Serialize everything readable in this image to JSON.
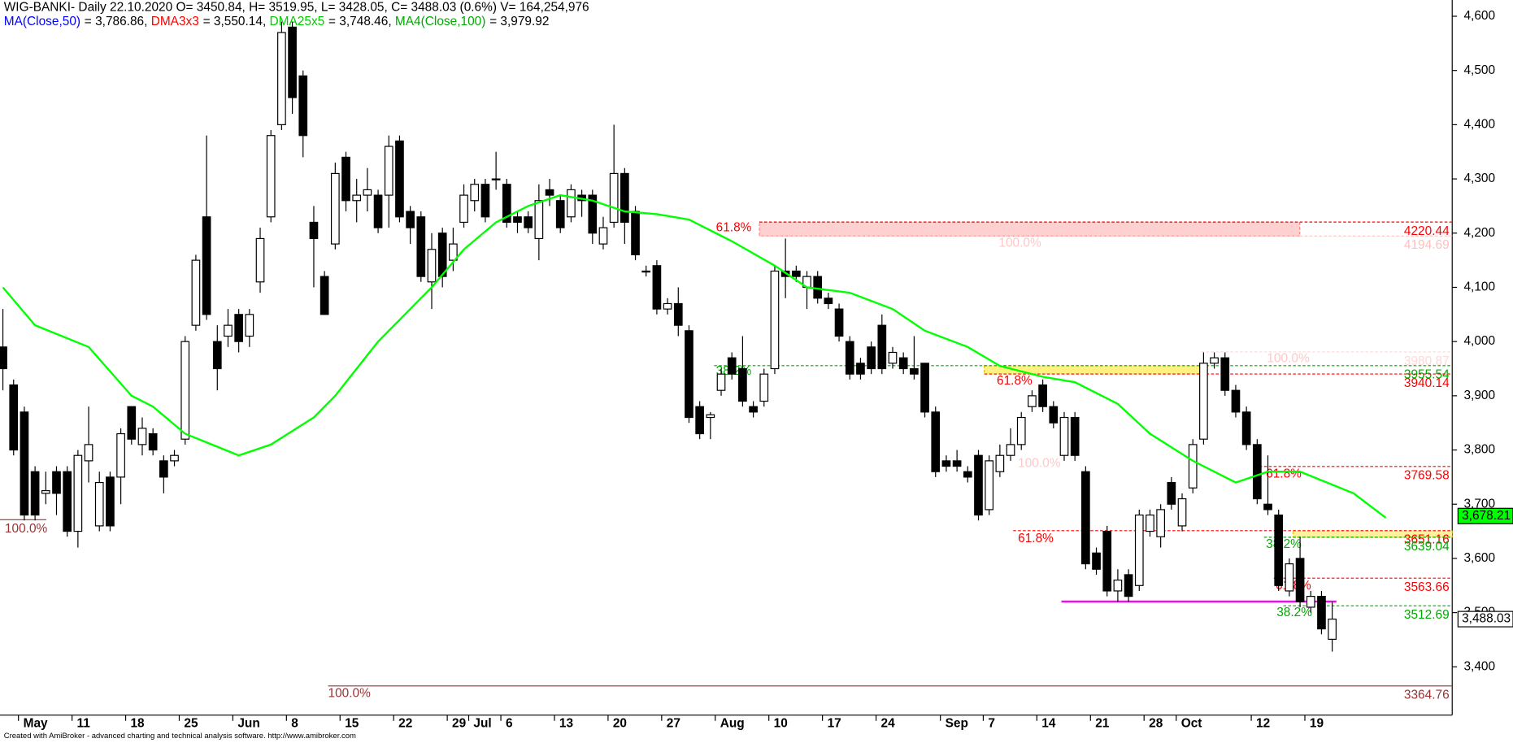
{
  "chart_data": {
    "type": "candlestick",
    "title": "WIG-BANKI- Daily 22.10.2020 O= 3450.84, H= 3519.95, L= 3428.05, C= 3488.03 (0.6%) V= 164,254,976",
    "indicators": [
      {
        "name": "MA(Close,50)",
        "color": "#0000ff",
        "value_label": "= 3,786.86,"
      },
      {
        "name": "DMA3x3",
        "color": "#ff0000",
        "value_label": "= 3,550.14,"
      },
      {
        "name": "DMA25x5",
        "color": "#00cc00",
        "value_label": "= 3,748.46,"
      },
      {
        "name": "MA4(Close,100)",
        "color": "#00aa00",
        "value_label": "= 3,979.92"
      }
    ],
    "categories": [
      null,
      "May",
      null,
      null,
      null,
      null,
      "11",
      null,
      null,
      null,
      null,
      "18",
      null,
      null,
      null,
      null,
      "25",
      null,
      null,
      null,
      null,
      "Jun",
      null,
      null,
      null,
      null,
      "8",
      null,
      null,
      null,
      null,
      "15",
      null,
      null,
      null,
      null,
      "22",
      null,
      null,
      null,
      null,
      "29",
      null,
      "Jul",
      null,
      null,
      "6",
      null,
      null,
      null,
      null,
      "13",
      null,
      null,
      null,
      null,
      "20",
      null,
      null,
      null,
      null,
      "27",
      null,
      null,
      null,
      null,
      "Aug",
      null,
      null,
      null,
      null,
      "10",
      null,
      null,
      null,
      null,
      "17",
      null,
      null,
      null,
      null,
      "24",
      null,
      null,
      null,
      null,
      null,
      "Sep",
      null,
      null,
      null,
      "7",
      null,
      null,
      null,
      null,
      "14",
      null,
      null,
      null,
      null,
      "21",
      null,
      null,
      null,
      null,
      "28",
      null,
      null,
      "Oct",
      null,
      null,
      null,
      null,
      null,
      null,
      "12",
      null,
      null,
      null,
      null,
      "19",
      null,
      null,
      null
    ],
    "open": [
      3990,
      3920,
      3870,
      3760,
      3720,
      3760,
      3760,
      3650,
      3780,
      3660,
      3750,
      3750,
      3880,
      3810,
      3830,
      3780,
      3780,
      3820,
      4030,
      4230,
      4000,
      4010,
      4050,
      4010,
      4110,
      4230,
      4400,
      4580,
      4490,
      4220,
      4120,
      4180,
      4340,
      4260,
      4270,
      4270,
      4270,
      4370,
      4240,
      4230,
      4110,
      4200,
      4150,
      4220,
      4260,
      4290,
      4300,
      4290,
      4230,
      4230,
      4190,
      4280,
      4260,
      4230,
      4270,
      4270,
      4180,
      4220,
      4310,
      4240,
      4130,
      4140,
      4060,
      4070,
      4020,
      3880,
      3860,
      3910,
      3970,
      3950,
      3880,
      3890,
      3950,
      4130,
      4130,
      4100,
      4120,
      4080,
      4060,
      4000,
      3960,
      3990,
      4030,
      3960,
      3970,
      3950,
      3960,
      3870,
      3780,
      3780,
      3760,
      3790,
      3690,
      3760,
      3790,
      3810,
      3880,
      3920,
      3880,
      3790,
      3860,
      3760,
      3610,
      3650,
      3540,
      3570,
      3550,
      3650,
      3640,
      3740,
      3660,
      3730,
      3820,
      3960,
      3970,
      3910,
      3870,
      3810,
      3700,
      3680,
      3540,
      3600,
      3510,
      3530,
      3450.84
    ],
    "high": [
      4060,
      3930,
      3880,
      3770,
      3760,
      3770,
      3770,
      3800,
      3880,
      3760,
      3760,
      3840,
      3880,
      3860,
      3840,
      3790,
      3800,
      4010,
      4160,
      4380,
      4030,
      4060,
      4060,
      4060,
      4210,
      4390,
      4590,
      4590,
      4500,
      4250,
      4130,
      4330,
      4350,
      4300,
      4320,
      4280,
      4380,
      4380,
      4250,
      4240,
      4200,
      4210,
      4210,
      4290,
      4300,
      4300,
      4350,
      4300,
      4240,
      4240,
      4290,
      4300,
      4270,
      4290,
      4280,
      4280,
      4230,
      4400,
      4320,
      4250,
      4140,
      4150,
      4080,
      4100,
      4030,
      3890,
      3870,
      3950,
      3980,
      4010,
      3890,
      3950,
      4140,
      4190,
      4140,
      4130,
      4130,
      4090,
      4070,
      4010,
      3970,
      4000,
      4050,
      3990,
      3980,
      4010,
      3960,
      3880,
      3790,
      3800,
      3770,
      3800,
      3790,
      3810,
      3840,
      3870,
      3910,
      3930,
      3890,
      3870,
      3870,
      3770,
      3620,
      3660,
      3580,
      3580,
      3690,
      3690,
      3700,
      3750,
      3720,
      3820,
      3980,
      3980,
      3980,
      3920,
      3880,
      3820,
      3790,
      3690,
      3600,
      3640,
      3540,
      3540,
      3519.95
    ],
    "low": [
      3910,
      3790,
      3670,
      3670,
      3700,
      3680,
      3640,
      3620,
      3740,
      3650,
      3650,
      3700,
      3810,
      3790,
      3790,
      3720,
      3770,
      3810,
      4020,
      4040,
      3910,
      3990,
      3980,
      3990,
      4090,
      4220,
      4390,
      4420,
      4340,
      4100,
      4060,
      4170,
      4240,
      4220,
      4240,
      4200,
      4210,
      4220,
      4180,
      4110,
      4060,
      4100,
      4130,
      4210,
      4240,
      4220,
      4280,
      4210,
      4200,
      4200,
      4150,
      4250,
      4200,
      4220,
      4230,
      4180,
      4170,
      4210,
      4180,
      4150,
      4120,
      4050,
      4050,
      4010,
      3850,
      3820,
      3820,
      3900,
      3930,
      3880,
      3860,
      3880,
      3940,
      4080,
      4110,
      4060,
      4070,
      4060,
      4000,
      3930,
      3930,
      3940,
      3940,
      3950,
      3940,
      3930,
      3860,
      3750,
      3760,
      3760,
      3740,
      3670,
      3680,
      3750,
      3780,
      3800,
      3870,
      3870,
      3840,
      3780,
      3780,
      3580,
      3570,
      3530,
      3520,
      3520,
      3540,
      3640,
      3620,
      3690,
      3650,
      3720,
      3810,
      3950,
      3900,
      3860,
      3800,
      3700,
      3680,
      3540,
      3530,
      3510,
      3500,
      3460,
      3428.05
    ],
    "close": [
      3950,
      3800,
      3680,
      3680,
      3725,
      3720,
      3650,
      3790,
      3810,
      3740,
      3660,
      3830,
      3820,
      3840,
      3800,
      3750,
      3790,
      4000,
      4150,
      4050,
      3950,
      4030,
      4000,
      4050,
      4190,
      4380,
      4570,
      4450,
      4380,
      4190,
      4050,
      4310,
      4260,
      4270,
      4280,
      4210,
      4360,
      4230,
      4210,
      4120,
      4170,
      4120,
      4180,
      4270,
      4290,
      4230,
      4300,
      4220,
      4220,
      4210,
      4260,
      4270,
      4210,
      4280,
      4260,
      4200,
      4210,
      4310,
      4220,
      4160,
      4130,
      4060,
      4070,
      4030,
      3860,
      3830,
      3865,
      3940,
      3940,
      3890,
      3870,
      3940,
      4130,
      4120,
      4120,
      4120,
      4080,
      4070,
      4010,
      3940,
      3940,
      3950,
      3950,
      3980,
      3950,
      3940,
      3870,
      3760,
      3770,
      3770,
      3750,
      3680,
      3780,
      3790,
      3810,
      3860,
      3900,
      3880,
      3850,
      3860,
      3790,
      3590,
      3580,
      3540,
      3560,
      3530,
      3680,
      3680,
      3690,
      3700,
      3710,
      3810,
      3960,
      3970,
      3910,
      3870,
      3810,
      3710,
      3690,
      3550,
      3590,
      3520,
      3530,
      3470,
      3488.03
    ],
    "series": [
      {
        "name": "DMA25x5",
        "color": "#00ff00",
        "x": [
          0,
          3,
          8,
          12,
          14,
          17,
          22,
          25,
          29,
          31,
          33,
          35,
          38,
          40,
          43,
          46,
          49,
          52,
          55,
          58,
          61,
          64,
          68,
          72,
          75,
          79,
          83,
          86,
          90,
          93,
          97,
          100,
          104,
          107,
          111,
          115,
          118,
          121,
          126,
          129
        ],
        "values": [
          4100,
          4030,
          3990,
          3900,
          3880,
          3830,
          3790,
          3810,
          3860,
          3900,
          3950,
          4000,
          4060,
          4100,
          4170,
          4220,
          4250,
          4270,
          4260,
          4240,
          4235,
          4225,
          4185,
          4140,
          4100,
          4090,
          4060,
          4020,
          3990,
          3955,
          3935,
          3925,
          3885,
          3830,
          3780,
          3740,
          3760,
          3760,
          3720,
          3675
        ]
      }
    ],
    "levels": [
      {
        "value": 4220.44,
        "color": "#ff0000",
        "dash": true,
        "from": 787
      },
      {
        "value": 4194.69,
        "color": "#ffc0c0",
        "dash": true,
        "from": 787
      },
      {
        "value": 3980.87,
        "color": "#ffd8d8",
        "dash": true,
        "from": 1245
      },
      {
        "value": 3955.54,
        "color": "#00aa00",
        "dash": true,
        "from": 740
      },
      {
        "value": 3940.14,
        "color": "#ff0000",
        "dash": true,
        "from": 1020
      },
      {
        "value": 3769.58,
        "color": "#ff0000",
        "dash": true,
        "from": 1300
      },
      {
        "value": 3651.16,
        "color": "#ff0000",
        "dash": true,
        "from": 1050
      },
      {
        "value": 3639.04,
        "color": "#00aa00",
        "dash": true,
        "from": 1310
      },
      {
        "value": 3563.66,
        "color": "#ff0000",
        "dash": true,
        "from": 1320
      },
      {
        "value": 3512.69,
        "color": "#00aa00",
        "dash": true,
        "from": 1330
      },
      {
        "value": 3364.76,
        "color": "#993333",
        "dash": false,
        "from": 340
      }
    ],
    "annotations": [
      {
        "text": "61.8%",
        "color": "#ff0000"
      },
      {
        "text": "100.0%",
        "color": "#ffc8c8"
      },
      {
        "text": "38.2%",
        "color": "#00aa00"
      },
      {
        "text": "100.0%",
        "color": "#ffc8c8"
      },
      {
        "text": "61.8%",
        "color": "#ff0000"
      },
      {
        "text": "100.0%",
        "color": "#ffc8c8"
      },
      {
        "text": "61.8%",
        "color": "#ff0000"
      },
      {
        "text": "61.8%",
        "color": "#ff0000"
      },
      {
        "text": "38.2%",
        "color": "#00aa00"
      },
      {
        "text": "61.8%",
        "color": "#ff0000"
      },
      {
        "text": "38.2%",
        "color": "#00aa00"
      },
      {
        "text": "100.0%",
        "color": "#993333"
      },
      {
        "text": "100.0%",
        "color": "#993333"
      }
    ],
    "price_markers": [
      {
        "value": 3678.21,
        "label": "3,678.21",
        "color": "#00ff00"
      },
      {
        "value": 3488.03,
        "label": "3,488.03",
        "color": "#ffffff"
      }
    ],
    "ylim": [
      3311,
      4630
    ],
    "yticks": [
      {
        "value": 3400,
        "label": "3,400"
      },
      {
        "value": 3500,
        "label": "3,500"
      },
      {
        "value": 3600,
        "label": "3,600"
      },
      {
        "value": 3700,
        "label": "3,700"
      },
      {
        "value": 3800,
        "label": "3,800"
      },
      {
        "value": 3900,
        "label": "3,900"
      },
      {
        "value": 4000,
        "label": "4,000"
      },
      {
        "value": 4100,
        "label": "4,100"
      },
      {
        "value": 4200,
        "label": "4,200"
      },
      {
        "value": 4300,
        "label": "4,300"
      },
      {
        "value": 4400,
        "label": "4,400"
      },
      {
        "value": 4500,
        "label": "4,500"
      },
      {
        "value": 4600,
        "label": "4,600"
      }
    ],
    "footer": "Created with AmiBroker - advanced charting and technical analysis software. http://www.amibroker.com"
  }
}
